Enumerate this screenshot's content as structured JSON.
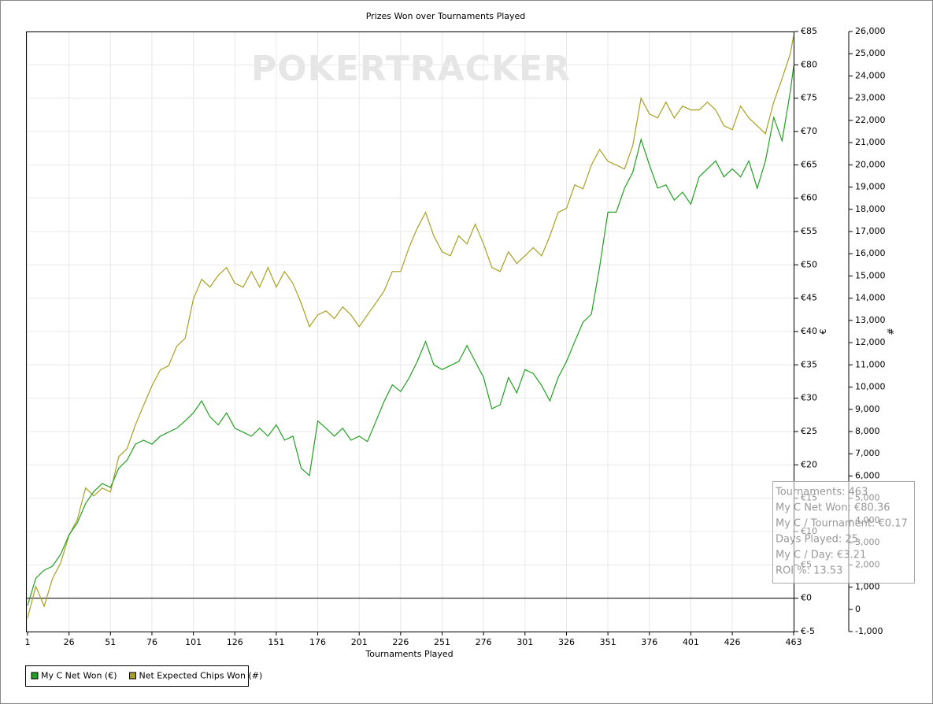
{
  "chart_data": {
    "type": "line",
    "title": "Prizes Won over Tournaments Played",
    "watermark": "POKERTRACKER",
    "xlabel": "Tournaments Played",
    "ylabel": "€",
    "y2label": "#",
    "x": [
      1,
      6,
      11,
      16,
      21,
      26,
      31,
      36,
      41,
      46,
      51,
      56,
      61,
      66,
      71,
      76,
      81,
      86,
      91,
      96,
      101,
      106,
      111,
      116,
      121,
      126,
      131,
      136,
      141,
      146,
      151,
      156,
      161,
      166,
      171,
      176,
      181,
      186,
      191,
      196,
      201,
      206,
      211,
      216,
      221,
      226,
      231,
      236,
      241,
      246,
      251,
      256,
      261,
      266,
      271,
      276,
      281,
      286,
      291,
      296,
      301,
      306,
      311,
      316,
      321,
      326,
      331,
      336,
      341,
      346,
      351,
      356,
      361,
      366,
      371,
      376,
      381,
      386,
      391,
      396,
      401,
      406,
      411,
      416,
      421,
      426,
      431,
      436,
      441,
      446,
      451,
      456,
      461,
      463
    ],
    "xlim": [
      1,
      463
    ],
    "xticks": [
      1,
      26,
      51,
      76,
      101,
      126,
      151,
      176,
      201,
      226,
      251,
      276,
      301,
      326,
      351,
      376,
      401,
      426,
      463
    ],
    "ylim": [
      -5,
      85
    ],
    "yticks": [
      {
        "value": -5,
        "label": "€-5"
      },
      {
        "value": 0,
        "label": "€0"
      },
      {
        "value": 5,
        "label": "€5"
      },
      {
        "value": 10,
        "label": "€10"
      },
      {
        "value": 15,
        "label": "€15"
      },
      {
        "value": 20,
        "label": "€20"
      },
      {
        "value": 25,
        "label": "€25"
      },
      {
        "value": 30,
        "label": "€30"
      },
      {
        "value": 35,
        "label": "€35"
      },
      {
        "value": 40,
        "label": "€40"
      },
      {
        "value": 45,
        "label": "€45"
      },
      {
        "value": 50,
        "label": "€50"
      },
      {
        "value": 55,
        "label": "€55"
      },
      {
        "value": 60,
        "label": "€60"
      },
      {
        "value": 65,
        "label": "€65"
      },
      {
        "value": 70,
        "label": "€70"
      },
      {
        "value": 75,
        "label": "€75"
      },
      {
        "value": 80,
        "label": "€80"
      },
      {
        "value": 85,
        "label": "€85"
      }
    ],
    "y2lim": [
      -1000,
      26000
    ],
    "y2ticks": [
      {
        "value": -1000,
        "label": "-1,000"
      },
      0,
      {
        "value": 1000,
        "label": "1,000"
      },
      {
        "value": 2000,
        "label": "2,000"
      },
      {
        "value": 3000,
        "label": "3,000"
      },
      {
        "value": 4000,
        "label": "4,000"
      },
      {
        "value": 5000,
        "label": "5,000"
      },
      {
        "value": 6000,
        "label": "6,000"
      },
      {
        "value": 7000,
        "label": "7,000"
      },
      {
        "value": 8000,
        "label": "8,000"
      },
      {
        "value": 9000,
        "label": "9,000"
      },
      {
        "value": 10000,
        "label": "10,000"
      },
      {
        "value": 11000,
        "label": "11,000"
      },
      {
        "value": 12000,
        "label": "12,000"
      },
      {
        "value": 13000,
        "label": "13,000"
      },
      {
        "value": 14000,
        "label": "14,000"
      },
      {
        "value": 15000,
        "label": "15,000"
      },
      {
        "value": 16000,
        "label": "16,000"
      },
      {
        "value": 17000,
        "label": "17,000"
      },
      {
        "value": 18000,
        "label": "18,000"
      },
      {
        "value": 19000,
        "label": "19,000"
      },
      {
        "value": 20000,
        "label": "20,000"
      },
      {
        "value": 21000,
        "label": "21,000"
      },
      {
        "value": 22000,
        "label": "22,000"
      },
      {
        "value": 23000,
        "label": "23,000"
      },
      {
        "value": 24000,
        "label": "24,000"
      },
      {
        "value": 25000,
        "label": "25,000"
      },
      {
        "value": 26000,
        "label": "26,000"
      }
    ],
    "grid": true,
    "zero_line": 0,
    "series": [
      {
        "name": "My C Net Won (€)",
        "color": "#22a022",
        "values": [
          -1.1,
          3,
          4.2,
          4.8,
          6.6,
          9.5,
          11.3,
          14.2,
          16,
          17.2,
          16.6,
          19.5,
          20.7,
          23.1,
          23.7,
          23.1,
          24.3,
          24.9,
          25.5,
          26.6,
          27.8,
          29.6,
          27.2,
          26,
          27.8,
          25.5,
          24.9,
          24.3,
          25.5,
          24.3,
          26,
          23.7,
          24.3,
          19.5,
          18.4,
          26.6,
          25.5,
          24.3,
          25.5,
          23.7,
          24.3,
          23.5,
          26.5,
          29.5,
          32,
          31,
          33,
          35.5,
          38.5,
          35,
          34.3,
          34.9,
          35.5,
          37.9,
          35.5,
          33.1,
          28.4,
          29,
          33.1,
          30.8,
          34.3,
          33.7,
          31.9,
          29.6,
          33.1,
          35.5,
          38.5,
          41.4,
          42.6,
          49.7,
          57.9,
          57.9,
          61.5,
          63.9,
          68.8,
          65,
          61.5,
          62,
          59.7,
          60.9,
          59.1,
          63.2,
          64.4,
          65.6,
          63.2,
          64.4,
          63.2,
          65.6,
          61.5,
          65.6,
          72.1,
          68.6,
          76,
          79.8
        ]
      },
      {
        "name": "Net Expected Chips Won (#)",
        "color": "#a8a020",
        "axis": "y2",
        "values": [
          -390,
          1030,
          140,
          1380,
          2090,
          3330,
          4040,
          5460,
          5100,
          5460,
          5280,
          6870,
          7230,
          8290,
          9180,
          10060,
          10770,
          10950,
          11840,
          12190,
          13960,
          14850,
          14500,
          15030,
          15380,
          14670,
          14500,
          15200,
          14500,
          15380,
          14500,
          15200,
          14670,
          13780,
          12720,
          13250,
          13430,
          13080,
          13610,
          13250,
          12720,
          13250,
          13780,
          14320,
          15200,
          15200,
          16270,
          17150,
          17860,
          16800,
          16090,
          15910,
          16800,
          16440,
          17330,
          16440,
          15380,
          15200,
          16090,
          15560,
          15910,
          16270,
          15910,
          16800,
          17860,
          18040,
          19100,
          18920,
          19990,
          20690,
          20160,
          19990,
          19810,
          20870,
          23000,
          22290,
          22110,
          22820,
          22110,
          22640,
          22470,
          22470,
          22820,
          22470,
          21760,
          21580,
          22640,
          22110,
          21760,
          21400,
          22820,
          23880,
          25000,
          25830
        ]
      }
    ],
    "info_box": [
      "Tournaments: 463",
      "My C Net Won: €80.36",
      "My C / Tournament: €0.17",
      "Days Played: 25",
      "My C / Day: €3.21",
      "ROI %: 13.53"
    ]
  }
}
